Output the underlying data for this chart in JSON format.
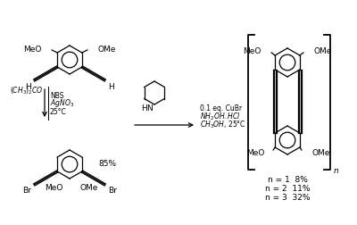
{
  "bg_color": "#ffffff",
  "line_color": "#000000",
  "text_color": "#000000",
  "font_size": 6.5,
  "yields_polymer": [
    "n = 1  8%",
    "n = 2  11%",
    "n = 3  32%"
  ]
}
